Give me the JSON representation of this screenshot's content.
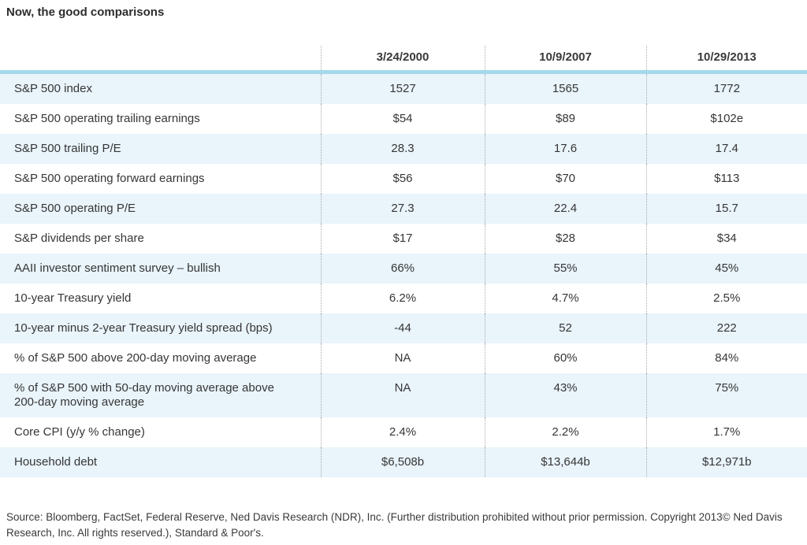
{
  "title": "Now, the good comparisons",
  "chart_data": {
    "type": "table",
    "title": "Now, the good comparisons",
    "columns": [
      "3/24/2000",
      "10/9/2007",
      "10/29/2013"
    ],
    "rows": [
      {
        "label": "S&P 500 index",
        "values": [
          "1527",
          "1565",
          "1772"
        ]
      },
      {
        "label": "S&P 500 operating trailing earnings",
        "values": [
          "$54",
          "$89",
          "$102e"
        ]
      },
      {
        "label": "S&P 500 trailing P/E",
        "values": [
          "28.3",
          "17.6",
          "17.4"
        ]
      },
      {
        "label": "S&P 500 operating forward earnings",
        "values": [
          "$56",
          "$70",
          "$113"
        ]
      },
      {
        "label": "S&P 500 operating P/E",
        "values": [
          "27.3",
          "22.4",
          "15.7"
        ]
      },
      {
        "label": "S&P dividends per share",
        "values": [
          "$17",
          "$28",
          "$34"
        ]
      },
      {
        "label": "AAII investor sentiment survey – bullish",
        "values": [
          "66%",
          "55%",
          "45%"
        ]
      },
      {
        "label": "10-year Treasury yield",
        "values": [
          "6.2%",
          "4.7%",
          "2.5%"
        ]
      },
      {
        "label": "10-year minus 2-year Treasury yield spread (bps)",
        "values": [
          "-44",
          "52",
          "222"
        ]
      },
      {
        "label": "% of S&P 500 above 200-day moving average",
        "values": [
          "NA",
          "60%",
          "84%"
        ]
      },
      {
        "label": "% of S&P 500 with 50-day moving average above 200-day moving average",
        "values": [
          "NA",
          "43%",
          "75%"
        ]
      },
      {
        "label": "Core CPI (y/y % change)",
        "values": [
          "2.4%",
          "2.2%",
          "1.7%"
        ]
      },
      {
        "label": "Household debt",
        "values": [
          "$6,508b",
          "$13,644b",
          "$12,971b"
        ]
      }
    ],
    "layout": {
      "row_striping": "alternate light blue starting with first data row",
      "column_dividers": "dotted vertical lines",
      "header_rule": "thick light blue under header"
    }
  },
  "colors": {
    "header_rule": "#a5d8eb",
    "row_tint": "#e9f4fb",
    "text": "#363636",
    "divider": "#ababab"
  },
  "footer": {
    "source_text": "Source: Bloomberg, FactSet, Federal Reserve, Ned Davis Research (NDR), Inc. (Further distribution prohibited without prior permission. Copyright 2013© Ned Davis Research, Inc. All rights reserved.), Standard & Poor's."
  }
}
